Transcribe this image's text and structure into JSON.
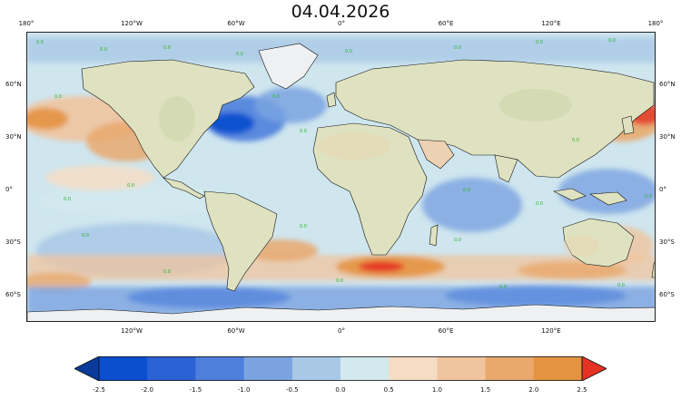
{
  "map": {
    "title": "04.04.2026",
    "lon_ticks_top": [
      "180°",
      "120°W",
      "60°W",
      "0°",
      "60°E",
      "120°E",
      "180°"
    ],
    "lon_ticks_bottom": [
      "120°W",
      "60°W",
      "0°",
      "60°E",
      "120°E"
    ],
    "lat_ticks_left": [
      "60°N",
      "30°N",
      "0°",
      "30°S",
      "60°S"
    ],
    "lat_ticks_right": [
      "60°N",
      "30°N",
      "0°",
      "30°S",
      "60°S"
    ],
    "contour_label": "0.0"
  },
  "colorbar": {
    "ticks": [
      "-2.5",
      "-2.0",
      "-1.5",
      "-1.0",
      "-0.5",
      "0.0",
      "0.5",
      "1.0",
      "1.5",
      "2.0",
      "2.5"
    ],
    "colors": [
      "#0b4fcf",
      "#2b63d6",
      "#4d7fdb",
      "#7aa3e0",
      "#a9c8e6",
      "#d2e9ee",
      "#f5ddc4",
      "#f0c49e",
      "#e9a86c",
      "#e49440"
    ],
    "under_color": "#0a3a9a",
    "over_color": "#e53222"
  },
  "palette": {
    "land": "#dfe2c0",
    "land_shade": "#c8d3a6",
    "desert": "#ecd2b2",
    "ice": "#e8ecef",
    "coast": "#111111",
    "contour": "#2ab52a"
  }
}
